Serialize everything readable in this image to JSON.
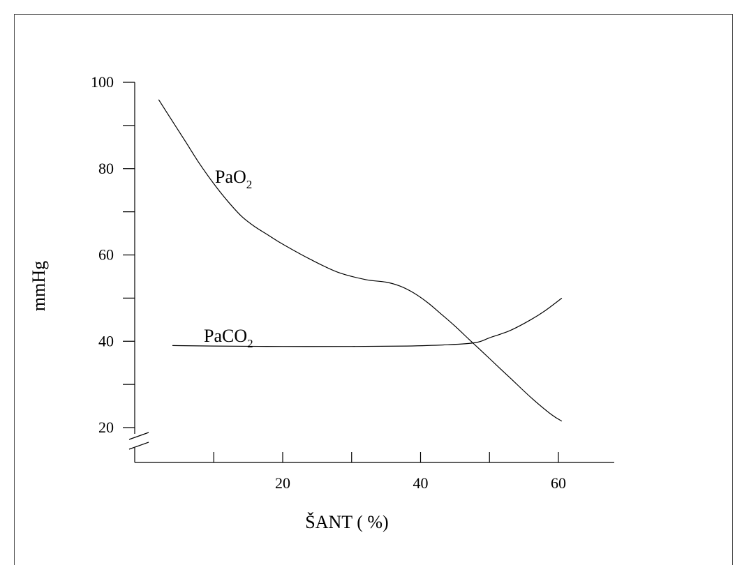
{
  "chart_data": {
    "type": "line",
    "title": "",
    "xlabel": "ŠANT ( %)",
    "ylabel": "mmHg",
    "xlim": [
      0,
      68
    ],
    "ylim": [
      20,
      100
    ],
    "x_ticks_labeled": [
      20,
      40,
      60
    ],
    "x_ticks_minor": [
      10,
      30,
      50
    ],
    "y_ticks_labeled": [
      20,
      40,
      60,
      80,
      100
    ],
    "y_ticks_minor": [
      30,
      50,
      70,
      90
    ],
    "y_axis_break": true,
    "grid": false,
    "series": [
      {
        "name": "PaO2",
        "label_main": "PaO",
        "label_sub": "2",
        "x": [
          2,
          4,
          6,
          8,
          10,
          12,
          14,
          16,
          18,
          20,
          24,
          28,
          32,
          35,
          37,
          39,
          41,
          43,
          45,
          47,
          50,
          53,
          56,
          59,
          60.5
        ],
        "y": [
          96,
          91,
          86,
          81,
          76.5,
          72.5,
          69,
          66.5,
          64.5,
          62.5,
          59,
          56,
          54.3,
          53.7,
          52.8,
          51.2,
          49,
          46.3,
          43.5,
          40.5,
          36,
          31.5,
          27,
          23,
          21.5
        ]
      },
      {
        "name": "PaCO2",
        "label_main": "PaCO",
        "label_sub": "2",
        "x": [
          4,
          10,
          20,
          30,
          38,
          44,
          48,
          50,
          53,
          56,
          58,
          60.5
        ],
        "y": [
          39,
          38.9,
          38.8,
          38.8,
          38.9,
          39.2,
          39.7,
          40.8,
          42.5,
          45,
          47,
          50
        ]
      }
    ]
  }
}
